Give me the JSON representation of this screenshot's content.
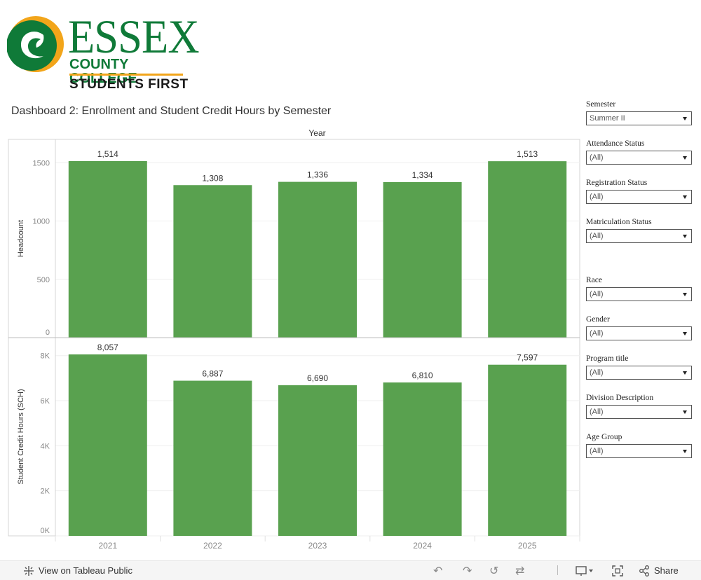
{
  "logo": {
    "line1": "ESSEX",
    "line2": "COUNTY COLLEGE",
    "line3": "STUDENTS FIRST",
    "colors": {
      "green": "#0f7a38",
      "orange": "#f2a51a"
    }
  },
  "dashboard": {
    "title": "Dashboard 2: Enrollment and Student Credit Hours by Semester",
    "column_header": "Year"
  },
  "chart_data": [
    {
      "type": "bar",
      "categories": [
        "2021",
        "2022",
        "2023",
        "2024",
        "2025"
      ],
      "values": [
        1514,
        1308,
        1336,
        1334,
        1513
      ],
      "value_labels": [
        "1,514",
        "1,308",
        "1,336",
        "1,334",
        "1,513"
      ],
      "ylabel": "Headcount",
      "ylim": [
        0,
        1700
      ],
      "yticks": [
        0,
        500,
        1000,
        1500
      ],
      "ytick_labels": [
        "0",
        "500",
        "1000",
        "1500"
      ],
      "bar_color": "#59a14f",
      "grid": true
    },
    {
      "type": "bar",
      "categories": [
        "2021",
        "2022",
        "2023",
        "2024",
        "2025"
      ],
      "values": [
        8057,
        6887,
        6690,
        6810,
        7597
      ],
      "value_labels": [
        "8,057",
        "6,887",
        "6,690",
        "6,810",
        "7,597"
      ],
      "ylabel": "Student Credit Hours (SCH)",
      "ylim": [
        0,
        8800
      ],
      "yticks": [
        0,
        2000,
        4000,
        6000,
        8000
      ],
      "ytick_labels": [
        "0K",
        "2K",
        "4K",
        "6K",
        "8K"
      ],
      "xtick_labels": [
        "2021",
        "2022",
        "2023",
        "2024",
        "2025"
      ],
      "bar_color": "#59a14f",
      "grid": true
    }
  ],
  "filters": [
    {
      "label": "Semester",
      "value": "Summer II"
    },
    {
      "label": "Attendance Status",
      "value": "(All)"
    },
    {
      "label": "Registration Status",
      "value": "(All)"
    },
    {
      "label": "Matriculation Status",
      "value": "(All)"
    },
    {
      "label": "Race",
      "value": "(All)"
    },
    {
      "label": "Gender",
      "value": "(All)"
    },
    {
      "label": "Program title",
      "value": "(All)"
    },
    {
      "label": "Division Description",
      "value": "(All)"
    },
    {
      "label": "Age Group",
      "value": "(All)"
    }
  ],
  "toolbar": {
    "view_label": "View on Tableau Public",
    "share_label": "Share",
    "icons": [
      "tableau-icon",
      "undo-icon",
      "redo-icon",
      "revert-icon",
      "refresh-icon",
      "download-icon",
      "fullscreen-icon",
      "share-icon"
    ]
  }
}
